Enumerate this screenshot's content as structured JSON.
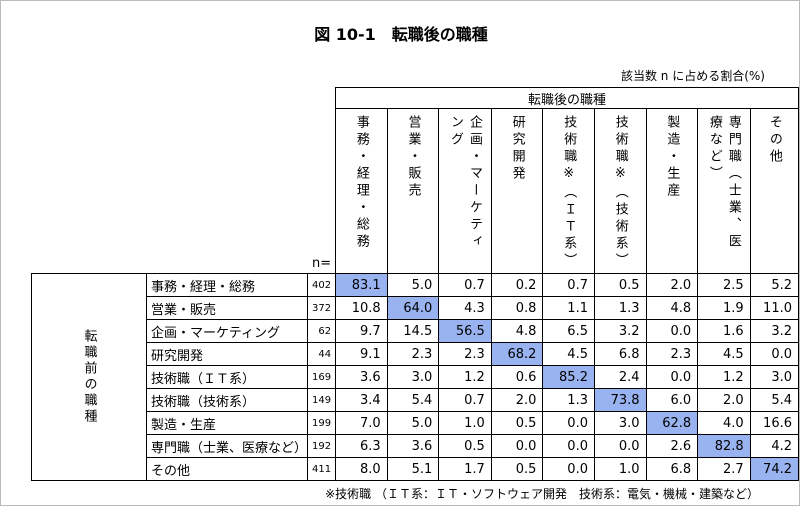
{
  "title": "図 10-1　転職後の職種",
  "unit_note": "該当数 n に占める割合(%)",
  "table": {
    "col_group": "転職後の職種",
    "row_group": "転職前の職種",
    "n_label": "n=",
    "columns": [
      "事務・経理・総務",
      "営業・販売",
      "企画・マーケティング",
      "研究開発",
      "技術職※（ＩＴ系）",
      "技術職※（技術系）",
      "製造・生産",
      "専門職（士業、医療など）",
      "その他"
    ],
    "rows": [
      {
        "label": "事務・経理・総務",
        "n": "402",
        "values": [
          "83.1",
          "5.0",
          "0.7",
          "0.2",
          "0.7",
          "0.5",
          "2.0",
          "2.5",
          "5.2"
        ]
      },
      {
        "label": "営業・販売",
        "n": "372",
        "values": [
          "10.8",
          "64.0",
          "4.3",
          "0.8",
          "1.1",
          "1.3",
          "4.8",
          "1.9",
          "11.0"
        ]
      },
      {
        "label": "企画・マーケティング",
        "n": "62",
        "values": [
          "9.7",
          "14.5",
          "56.5",
          "4.8",
          "6.5",
          "3.2",
          "0.0",
          "1.6",
          "3.2"
        ]
      },
      {
        "label": "研究開発",
        "n": "44",
        "values": [
          "9.1",
          "2.3",
          "2.3",
          "68.2",
          "4.5",
          "6.8",
          "2.3",
          "4.5",
          "0.0"
        ]
      },
      {
        "label": "技術職（ＩＴ系）",
        "n": "169",
        "values": [
          "3.6",
          "3.0",
          "1.2",
          "0.6",
          "85.2",
          "2.4",
          "0.0",
          "1.2",
          "3.0"
        ]
      },
      {
        "label": "技術職（技術系）",
        "n": "149",
        "values": [
          "3.4",
          "5.4",
          "0.7",
          "2.0",
          "1.3",
          "73.8",
          "6.0",
          "2.0",
          "5.4"
        ]
      },
      {
        "label": "製造・生産",
        "n": "199",
        "values": [
          "7.0",
          "5.0",
          "1.0",
          "0.5",
          "0.0",
          "3.0",
          "62.8",
          "4.0",
          "16.6"
        ]
      },
      {
        "label": "専門職（士業、医療など）",
        "n": "192",
        "values": [
          "6.3",
          "3.6",
          "0.5",
          "0.0",
          "0.0",
          "0.0",
          "2.6",
          "82.8",
          "4.2"
        ]
      },
      {
        "label": "その他",
        "n": "411",
        "values": [
          "8.0",
          "5.1",
          "1.7",
          "0.5",
          "0.0",
          "1.0",
          "6.8",
          "2.7",
          "74.2"
        ]
      }
    ]
  },
  "footnote": "※技術職 （ＩＴ系：ＩＴ・ソフトウェア開発　技術系：電気・機械・建築など）"
}
